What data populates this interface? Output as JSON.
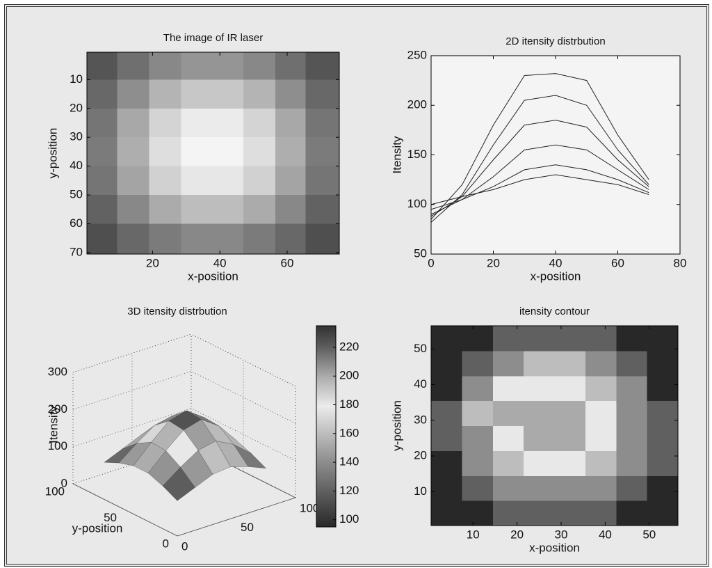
{
  "chart_data": [
    {
      "type": "heatmap",
      "title": "The image of IR laser",
      "xlabel": "x-position",
      "ylabel": "y-position",
      "x": [
        5,
        14,
        24,
        33,
        42,
        52,
        61,
        70
      ],
      "y": [
        5,
        15,
        25,
        35,
        45,
        55,
        65
      ],
      "values": [
        [
          110,
          130,
          150,
          160,
          160,
          150,
          130,
          110
        ],
        [
          125,
          155,
          185,
          200,
          200,
          185,
          155,
          125
        ],
        [
          135,
          175,
          210,
          228,
          228,
          210,
          175,
          135
        ],
        [
          140,
          180,
          218,
          235,
          235,
          218,
          180,
          140
        ],
        [
          135,
          172,
          208,
          225,
          225,
          208,
          172,
          135
        ],
        [
          120,
          150,
          178,
          192,
          192,
          178,
          150,
          120
        ],
        [
          105,
          125,
          140,
          150,
          150,
          140,
          125,
          105
        ]
      ],
      "clim": [
        90,
        240
      ],
      "xlim": [
        0.5,
        75.5
      ],
      "ylim": [
        0.5,
        70.5
      ],
      "y_reversed": true,
      "xticks": [
        20,
        40,
        60
      ],
      "yticks": [
        10,
        20,
        30,
        40,
        50,
        60,
        70
      ]
    },
    {
      "type": "line",
      "title": "2D itensity distrbution",
      "xlabel": "x-position",
      "ylabel": "Itensity",
      "x": [
        0,
        10,
        20,
        30,
        40,
        50,
        60,
        70
      ],
      "series": [
        {
          "color": "#222222",
          "values": [
            85,
            120,
            180,
            230,
            232,
            225,
            170,
            125
          ]
        },
        {
          "color": "#222222",
          "values": [
            82,
            110,
            160,
            205,
            210,
            200,
            155,
            120
          ]
        },
        {
          "color": "#222222",
          "values": [
            88,
            108,
            145,
            180,
            185,
            178,
            145,
            118
          ]
        },
        {
          "color": "#222222",
          "values": [
            90,
            105,
            128,
            155,
            160,
            155,
            135,
            115
          ]
        },
        {
          "color": "#222222",
          "values": [
            95,
            105,
            118,
            135,
            140,
            135,
            125,
            112
          ]
        },
        {
          "color": "#222222",
          "values": [
            100,
            108,
            115,
            125,
            130,
            125,
            120,
            110
          ]
        }
      ],
      "xlim": [
        0,
        80
      ],
      "ylim": [
        50,
        250
      ],
      "xticks": [
        0,
        20,
        40,
        60,
        80
      ],
      "yticks": [
        50,
        100,
        150,
        200,
        250
      ]
    },
    {
      "type": "surface3d",
      "title": "3D itensity distrbution",
      "ylabel": "y-position",
      "zlabel": "Itensity",
      "x": [
        0,
        15,
        30,
        45,
        60,
        75
      ],
      "y": [
        0,
        14,
        28,
        42,
        56,
        70
      ],
      "values": [
        [
          95,
          115,
          135,
          140,
          125,
          105
        ],
        [
          115,
          150,
          180,
          190,
          165,
          125
        ],
        [
          130,
          175,
          215,
          228,
          195,
          140
        ],
        [
          130,
          178,
          220,
          232,
          198,
          142
        ],
        [
          118,
          155,
          188,
          198,
          172,
          128
        ],
        [
          100,
          120,
          140,
          145,
          130,
          110
        ]
      ],
      "xlim": [
        0,
        100
      ],
      "ylim": [
        0,
        100
      ],
      "zlim": [
        0,
        300
      ],
      "xticks": [
        0,
        50,
        100
      ],
      "yticks": [
        0,
        50,
        100
      ],
      "zticks": [
        0,
        100,
        200,
        300
      ],
      "clim": [
        95,
        235
      ],
      "cticks": [
        100,
        120,
        140,
        160,
        180,
        200,
        220
      ]
    },
    {
      "type": "contour",
      "title": "itensity contour",
      "xlabel": "x-position",
      "ylabel": "y-position",
      "x": [
        4,
        11,
        18,
        25,
        32,
        39,
        46,
        53
      ],
      "y": [
        4,
        11,
        18,
        25,
        32,
        39,
        46,
        53
      ],
      "values": [
        [
          100,
          112,
          120,
          125,
          125,
          120,
          112,
          100
        ],
        [
          110,
          130,
          145,
          152,
          152,
          145,
          130,
          112
        ],
        [
          118,
          148,
          175,
          188,
          188,
          175,
          148,
          120
        ],
        [
          122,
          158,
          195,
          215,
          215,
          192,
          155,
          122
        ],
        [
          122,
          160,
          200,
          220,
          218,
          195,
          156,
          122
        ],
        [
          118,
          150,
          180,
          195,
          192,
          178,
          148,
          118
        ],
        [
          110,
          135,
          152,
          160,
          160,
          150,
          132,
          110
        ],
        [
          100,
          115,
          128,
          132,
          132,
          126,
          114,
          100
        ]
      ],
      "levels": [
        120,
        140,
        160,
        180,
        200
      ],
      "clim": [
        95,
        235
      ],
      "xlim": [
        0.5,
        56.5
      ],
      "ylim": [
        0.5,
        56.5
      ],
      "xticks": [
        10,
        20,
        30,
        40,
        50
      ],
      "yticks": [
        10,
        20,
        30,
        40,
        50
      ]
    }
  ]
}
